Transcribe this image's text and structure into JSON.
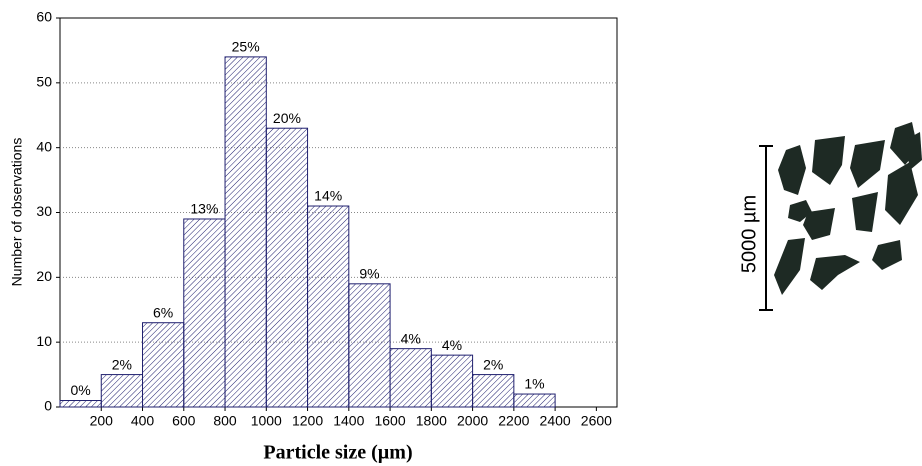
{
  "chart_data": {
    "type": "histogram",
    "x_label": "Particle size (µm)",
    "y_label": "Number of observations",
    "bins": [
      0,
      200,
      400,
      600,
      800,
      1000,
      1200,
      1400,
      1600,
      1800,
      2000,
      2200,
      2400
    ],
    "values": [
      1,
      5,
      13,
      29,
      54,
      43,
      31,
      19,
      9,
      8,
      5,
      2
    ],
    "percent_labels": [
      "0%",
      "2%",
      "6%",
      "13%",
      "25%",
      "20%",
      "14%",
      "9%",
      "4%",
      "4%",
      "2%",
      "1%"
    ],
    "color": "#1f1f6e",
    "xlim": [
      0,
      2700
    ],
    "xticks": [
      200,
      400,
      600,
      800,
      1000,
      1200,
      1400,
      1600,
      1800,
      2000,
      2200,
      2400,
      2600
    ],
    "ylim": [
      0,
      60
    ],
    "yticks": [
      0,
      10,
      20,
      30,
      40,
      50,
      60
    ],
    "grid": true
  },
  "scale_bar_label": "5000 µm"
}
